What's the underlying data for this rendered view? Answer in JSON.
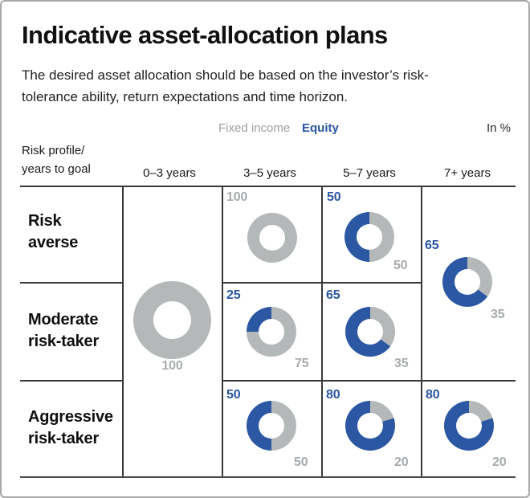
{
  "title": "Indicative asset-allocation plans",
  "subtitle": "The desired asset allocation should be based on the investor’s risk-\ntolerance ability, return expectations and time horizon.",
  "legend": {
    "fixed_income": "Fixed income",
    "equity": "Equity",
    "unit": "In %"
  },
  "colors": {
    "equity": "#2b57a3",
    "fixed_income": "#b5b8b9",
    "grid": "#383838"
  },
  "table": {
    "corner_label": "Risk profile/\nyears to goal",
    "columns": [
      "0–3 years",
      "3–5 years",
      "5–7 years",
      "7+ years"
    ],
    "rows": [
      "Risk\naverse",
      "Moderate\nrisk-taker",
      "Aggressive\nrisk-taker"
    ]
  },
  "chart_data": {
    "type": "pie",
    "subtype": "donut-grid",
    "unit": "percent",
    "title": "Indicative asset-allocation plans",
    "legend_entries": [
      "Fixed income",
      "Equity"
    ],
    "categories": [
      "0–3 years",
      "3–5 years",
      "5–7 years",
      "7+ years"
    ],
    "row_groups": [
      "Risk averse",
      "Moderate risk-taker",
      "Aggressive risk-taker"
    ],
    "cells": [
      {
        "risk_profile": "All profiles",
        "horizon": "0–3 years",
        "equity": "",
        "fixed_income": 100
      },
      {
        "risk_profile": "Risk averse",
        "horizon": "3–5 years",
        "equity": "",
        "fixed_income": 100
      },
      {
        "risk_profile": "Risk averse",
        "horizon": "5–7 years",
        "equity": 50,
        "fixed_income": 50
      },
      {
        "risk_profile": "Risk averse / Moderate risk-taker",
        "horizon": "7+ years",
        "equity": 65,
        "fixed_income": 35
      },
      {
        "risk_profile": "Moderate risk-taker",
        "horizon": "3–5 years",
        "equity": 25,
        "fixed_income": 75
      },
      {
        "risk_profile": "Moderate risk-taker",
        "horizon": "5–7 years",
        "equity": 65,
        "fixed_income": 35
      },
      {
        "risk_profile": "Aggressive risk-taker",
        "horizon": "3–5 years",
        "equity": 50,
        "fixed_income": 50
      },
      {
        "risk_profile": "Aggressive risk-taker",
        "horizon": "5–7 years",
        "equity": 80,
        "fixed_income": 20
      },
      {
        "risk_profile": "Aggressive risk-taker",
        "horizon": "7+ years",
        "equity": 80,
        "fixed_income": 20
      }
    ]
  }
}
